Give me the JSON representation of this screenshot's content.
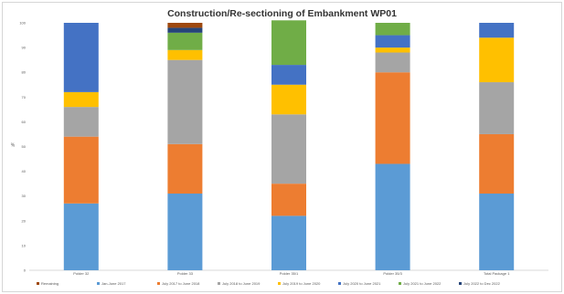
{
  "chart_data": {
    "type": "bar",
    "stacked": true,
    "title": "Construction/Re-sectioning of Embankment WP01",
    "ylabel": "%",
    "ylim": [
      0,
      100
    ],
    "yticks": [
      "0",
      "10",
      "20",
      "30",
      "40",
      "50",
      "60",
      "70",
      "80",
      "90",
      "100"
    ],
    "grid": false,
    "legend_position": "bottom",
    "categories": [
      "Polder 32",
      "Polder 33",
      "Polder 35/1",
      "Polder 35/3",
      "Total Package 1"
    ],
    "series": [
      {
        "name": "Jan-June 2017",
        "color": "#5b9bd5",
        "values": [
          27,
          31,
          22,
          43,
          31
        ]
      },
      {
        "name": "July 2017 to June 2018",
        "color": "#ed7d31",
        "values": [
          27,
          20,
          13,
          37,
          24
        ]
      },
      {
        "name": "July 2018 to June 2019",
        "color": "#a5a5a5",
        "values": [
          12,
          34,
          28,
          8,
          21
        ]
      },
      {
        "name": "July 2019 to June 2020",
        "color": "#ffc000",
        "values": [
          6,
          4,
          12,
          2,
          18
        ]
      },
      {
        "name": "July 2020 to June 2021",
        "color": "#4472c4",
        "values": [
          28,
          0,
          8,
          5,
          6
        ]
      },
      {
        "name": "July 2021 to June 2022",
        "color": "#70ad47",
        "values": [
          0,
          7,
          18,
          5,
          0
        ]
      },
      {
        "name": "July 2022 to Dec 2022",
        "color": "#264478",
        "values": [
          0,
          2,
          0,
          0,
          0
        ]
      },
      {
        "name": "Remaining",
        "color": "#9e480e",
        "values": [
          0,
          2,
          0,
          0,
          0
        ]
      }
    ],
    "legend_order": [
      "Remaining",
      "Jan-June 2017",
      "July 2017 to June 2018",
      "July 2018 to June 2019",
      "July 2019 to June 2020",
      "July 2020 to June 2021",
      "July 2021 to June 2022",
      "July 2022 to Dec 2022"
    ]
  }
}
